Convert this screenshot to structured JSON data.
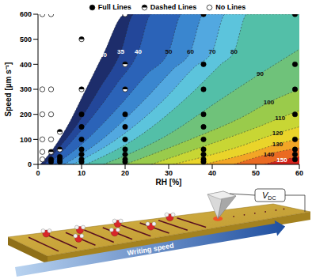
{
  "chart_data": {
    "type": "contour",
    "x_label": "RH [%]",
    "y_label": "Speed [µm s⁻¹]",
    "xlim": [
      0,
      60
    ],
    "xticks": [
      0,
      10,
      20,
      30,
      40,
      50,
      60
    ],
    "ylim": [
      0,
      600
    ],
    "yticks": [
      0,
      100,
      200,
      300,
      400,
      500,
      600
    ],
    "grid": false,
    "legend": "top",
    "contours": [
      {
        "level": 30,
        "color": "#1d2d6b",
        "x": [
          0.5,
          2.5,
          6.5,
          11,
          15,
          20
        ],
        "y": [
          0,
          40,
          145,
          300,
          440,
          600
        ]
      },
      {
        "level": 35,
        "color": "#23479a",
        "x": [
          1.5,
          4,
          9,
          14,
          19,
          22
        ],
        "y": [
          0,
          50,
          160,
          300,
          450,
          600
        ]
      },
      {
        "level": 40,
        "color": "#2b63b8",
        "x": [
          2.5,
          6,
          12,
          18,
          23,
          26
        ],
        "y": [
          0,
          60,
          180,
          320,
          450,
          600
        ]
      },
      {
        "level": 50,
        "color": "#3a86cf",
        "x": [
          4,
          10,
          18,
          25,
          30,
          33
        ],
        "y": [
          0,
          80,
          220,
          360,
          450,
          600
        ]
      },
      {
        "level": 60,
        "color": "#52a8e0",
        "x": [
          6,
          14,
          24,
          31,
          35,
          38
        ],
        "y": [
          0,
          90,
          250,
          380,
          450,
          600
        ]
      },
      {
        "level": 70,
        "color": "#5cc4dc",
        "x": [
          8,
          18,
          29,
          36,
          40,
          43
        ],
        "y": [
          0,
          100,
          260,
          390,
          450,
          600
        ]
      },
      {
        "level": 80,
        "color": "#53bfa8",
        "x": [
          11,
          23,
          35,
          42,
          45,
          48
        ],
        "y": [
          0,
          110,
          280,
          400,
          450,
          600
        ]
      },
      {
        "level": 90,
        "color": "#6fc27a",
        "x": [
          15,
          29,
          42,
          51,
          60
        ],
        "y": [
          0,
          110,
          260,
          362,
          460
        ]
      },
      {
        "level": 100,
        "color": "#9acb4b",
        "x": [
          20,
          35,
          47,
          53,
          60
        ],
        "y": [
          0,
          100,
          190,
          248,
          300
        ]
      },
      {
        "level": 110,
        "color": "#c8d634",
        "x": [
          26,
          41,
          52,
          55.6,
          60
        ],
        "y": [
          0,
          90,
          160,
          186,
          215
        ]
      },
      {
        "level": 120,
        "color": "#ead42a",
        "x": [
          31,
          46,
          55,
          60
        ],
        "y": [
          0,
          70,
          125,
          150
        ]
      },
      {
        "level": 130,
        "color": "#f3a526",
        "x": [
          38,
          49,
          55,
          60
        ],
        "y": [
          0,
          48,
          82,
          102
        ]
      },
      {
        "level": 140,
        "color": "#ea6a22",
        "x": [
          45,
          53,
          60
        ],
        "y": [
          0,
          42,
          66
        ]
      },
      {
        "level": 150,
        "color": "#d4221c",
        "x": [
          52,
          56,
          60
        ],
        "y": [
          0,
          18,
          30
        ]
      }
    ],
    "series": [
      {
        "name": "Full Lines",
        "type": "scatter",
        "marker": "filled",
        "color": "#000000",
        "x": [
          3,
          3,
          5,
          5,
          5,
          10,
          10,
          10,
          10,
          10,
          10,
          10,
          20,
          20,
          20,
          20,
          20,
          20,
          20,
          38,
          38,
          38,
          38,
          38,
          38,
          38,
          38,
          38,
          38,
          59,
          59,
          59,
          59,
          59,
          59,
          59,
          59
        ],
        "y": [
          20,
          10,
          30,
          20,
          10,
          200,
          150,
          100,
          60,
          40,
          20,
          10,
          200,
          150,
          100,
          60,
          40,
          20,
          10,
          600,
          400,
          300,
          200,
          150,
          100,
          60,
          40,
          20,
          10,
          600,
          400,
          300,
          200,
          100,
          60,
          40,
          20
        ]
      },
      {
        "name": "Dashed Lines",
        "type": "scatter",
        "marker": "half",
        "color": "#000000",
        "x": [
          3,
          5,
          5,
          10,
          10,
          20,
          20,
          20
        ],
        "y": [
          50,
          130,
          60,
          500,
          300,
          600,
          400,
          300
        ]
      },
      {
        "name": "No Lines",
        "type": "scatter",
        "marker": "open",
        "color": "#000000",
        "x": [
          1,
          1,
          1,
          1,
          1,
          1,
          3,
          3,
          3,
          3
        ],
        "y": [
          600,
          300,
          200,
          100,
          50,
          20,
          600,
          300,
          200,
          100
        ]
      }
    ]
  },
  "illustration": {
    "arrow_label": "Writing speed",
    "voltage_label": "V",
    "voltage_subscript": "DC"
  }
}
